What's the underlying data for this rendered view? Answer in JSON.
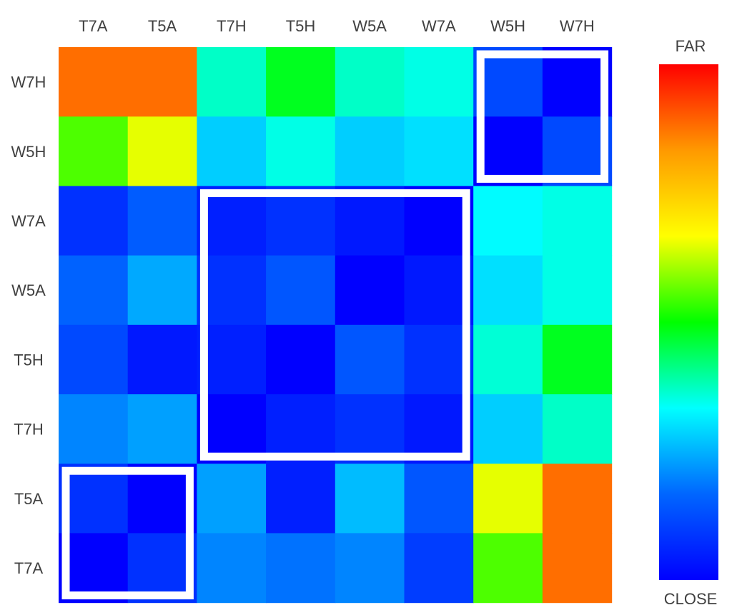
{
  "chart_data": {
    "type": "heatmap",
    "x_categories": [
      "T7A",
      "T5A",
      "T7H",
      "T5H",
      "W5A",
      "W7A",
      "W5H",
      "W7H"
    ],
    "y_categories": [
      "W7H",
      "W5H",
      "W7A",
      "W5A",
      "T5H",
      "T7H",
      "T5A",
      "T7A"
    ],
    "value_range": [
      0,
      1
    ],
    "values": [
      [
        0.88,
        0.88,
        0.37,
        0.48,
        0.37,
        0.35,
        0.12,
        0.0
      ],
      [
        0.55,
        0.65,
        0.28,
        0.35,
        0.28,
        0.3,
        0.0,
        0.12
      ],
      [
        0.08,
        0.15,
        0.05,
        0.08,
        0.04,
        0.0,
        0.33,
        0.35
      ],
      [
        0.16,
        0.24,
        0.08,
        0.14,
        0.0,
        0.04,
        0.3,
        0.35
      ],
      [
        0.12,
        0.04,
        0.05,
        0.0,
        0.14,
        0.08,
        0.36,
        0.48
      ],
      [
        0.2,
        0.23,
        0.0,
        0.05,
        0.08,
        0.04,
        0.28,
        0.37
      ],
      [
        0.08,
        0.0,
        0.23,
        0.05,
        0.26,
        0.14,
        0.65,
        0.88
      ],
      [
        0.0,
        0.08,
        0.2,
        0.18,
        0.2,
        0.1,
        0.55,
        0.88
      ]
    ],
    "highlight_blocks": [
      {
        "rows": [
          "W7H",
          "W5H"
        ],
        "cols": [
          "W5H",
          "W7H"
        ]
      },
      {
        "rows": [
          "W7A",
          "W5A",
          "T5H",
          "T7H"
        ],
        "cols": [
          "T7H",
          "T5H",
          "W5A",
          "W7A"
        ]
      },
      {
        "rows": [
          "T5A",
          "T7A"
        ],
        "cols": [
          "T7A",
          "T5A"
        ]
      }
    ],
    "colorbar": {
      "top_label": "FAR",
      "bottom_label": "CLOSE",
      "colors": [
        "#ff0000",
        "#ff9900",
        "#ffff00",
        "#00ff00",
        "#00ffff",
        "#0066ff",
        "#0000ff"
      ]
    },
    "x_ticks_position": "top",
    "y_ticks_position": "left",
    "legend_placement": "right"
  }
}
